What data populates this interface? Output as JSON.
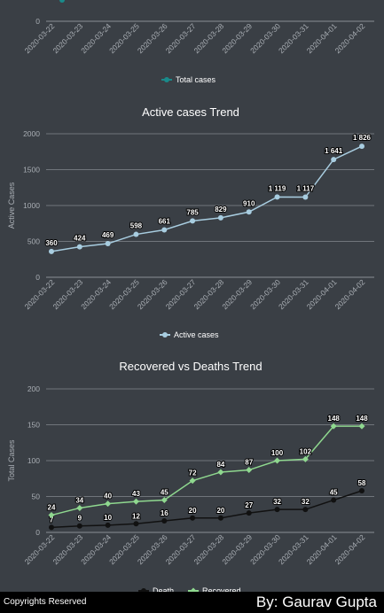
{
  "footer": {
    "copyright": "Copyrights Reserved",
    "author": "By: Gaurav Gupta"
  },
  "colors": {
    "total": "#1a8a8a",
    "active": "#a8cde0",
    "recovered": "#8fd88f",
    "death": "#111111"
  },
  "chart_data": [
    {
      "type": "line",
      "title": "",
      "ylabel": "",
      "x": [
        "2020-03-22",
        "2020-03-23",
        "2020-03-24",
        "2020-03-25",
        "2020-03-26",
        "2020-03-27",
        "2020-03-28",
        "2020-03-29",
        "2020-03-30",
        "2020-03-31",
        "2020-04-01",
        "2020-04-02"
      ],
      "y_visible_tick": "0",
      "legend": "bottom",
      "series": [
        {
          "name": "Total cases"
        }
      ]
    },
    {
      "type": "line",
      "title": "Active cases Trend",
      "ylabel": "Active Cases",
      "ylim": [
        0,
        2000
      ],
      "yticks": [
        0,
        500,
        1000,
        1500,
        2000
      ],
      "grid": true,
      "legend": "bottom",
      "x": [
        "2020-03-22",
        "2020-03-23",
        "2020-03-24",
        "2020-03-25",
        "2020-03-26",
        "2020-03-27",
        "2020-03-28",
        "2020-03-29",
        "2020-03-30",
        "2020-03-31",
        "2020-04-01",
        "2020-04-02"
      ],
      "series": [
        {
          "name": "Active cases",
          "values": [
            360,
            424,
            469,
            598,
            661,
            785,
            829,
            910,
            1119,
            1117,
            1641,
            1826
          ],
          "labels": [
            "360",
            "424",
            "469",
            "598",
            "661",
            "785",
            "829",
            "910",
            "1 119",
            "1 117",
            "1 641",
            "1 826"
          ]
        }
      ]
    },
    {
      "type": "line",
      "title": "Recovered vs Deaths Trend",
      "ylabel": "Total Cases",
      "ylim": [
        0,
        200
      ],
      "yticks": [
        0,
        50,
        100,
        150,
        200
      ],
      "grid": true,
      "legend": "bottom",
      "x": [
        "2020-03-22",
        "2020-03-23",
        "2020-03-24",
        "2020-03-25",
        "2020-03-26",
        "2020-03-27",
        "2020-03-28",
        "2020-03-29",
        "2020-03-30",
        "2020-03-31",
        "2020-04-01",
        "2020-04-02"
      ],
      "series": [
        {
          "name": "Death",
          "values": [
            7,
            9,
            10,
            12,
            16,
            20,
            20,
            27,
            32,
            32,
            45,
            58
          ]
        },
        {
          "name": "Recovered",
          "values": [
            24,
            34,
            40,
            43,
            45,
            72,
            84,
            87,
            100,
            102,
            148,
            148
          ]
        }
      ]
    }
  ]
}
